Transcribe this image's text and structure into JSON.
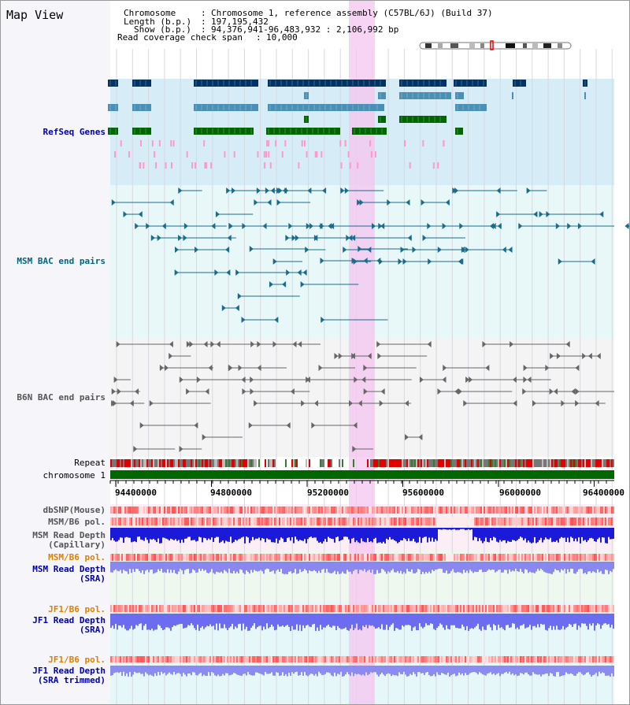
{
  "title": "Map View",
  "header": {
    "chromosome_key": "Chromosome",
    "chromosome_val": "Chromosome 1, reference assembly (C57BL/6J) (Build 37)",
    "length_key": "Length (b.p.)",
    "length_val": "197,195,432",
    "show_key": "Show (b.p.)",
    "show_val": "94,376,941-96,483,932 : 2,106,992 bp",
    "coverage_key": "Read coverage check span",
    "coverage_val": "10,000"
  },
  "tracks": {
    "refseq": "RefSeq Genes",
    "msm_bac": "MSM BAC end pairs",
    "b6n_bac": "B6N BAC end pairs",
    "repeat": "Repeat",
    "chromosome": "chromosome 1",
    "dbsnp": "dbSNP(Mouse)",
    "msm_b6_pol_1": "MSM/B6 pol.",
    "msm_depth_cap_1": "MSM Read Depth",
    "msm_depth_cap_2": "(Capillary)",
    "msm_b6_pol_2": "MSM/B6 pol.",
    "msm_depth_sra_1": "MSM Read Depth",
    "msm_depth_sra_2": "(SRA)",
    "jf1_b6_pol_1": "JF1/B6 pol.",
    "jf1_depth_sra_1": "JF1 Read Depth",
    "jf1_depth_sra_2": "(SRA)",
    "jf1_b6_pol_2": "JF1/B6 pol.",
    "jf1_depth_trim_1": "JF1 Read Depth",
    "jf1_depth_trim_2": "(SRA trimmed)"
  },
  "axis": {
    "ticks": [
      "94400000",
      "94800000",
      "95200000",
      "95600000",
      "96000000",
      "96400000"
    ],
    "tick_values": [
      94400000,
      94800000,
      95200000,
      95600000,
      96000000,
      96400000
    ],
    "start": 94376941,
    "end": 96483932
  },
  "colors": {
    "refseq_dark": "#003366",
    "refseq_mid": "#4a8fb5",
    "refseq_green": "#006600",
    "msm_bac": "#1a6b8c",
    "b6n_bac": "#666666",
    "highlight": "#f5c6f0",
    "label_blue": "#0000aa",
    "label_teal": "#006680",
    "label_orange": "#e08000",
    "label_gray": "#555555"
  }
}
